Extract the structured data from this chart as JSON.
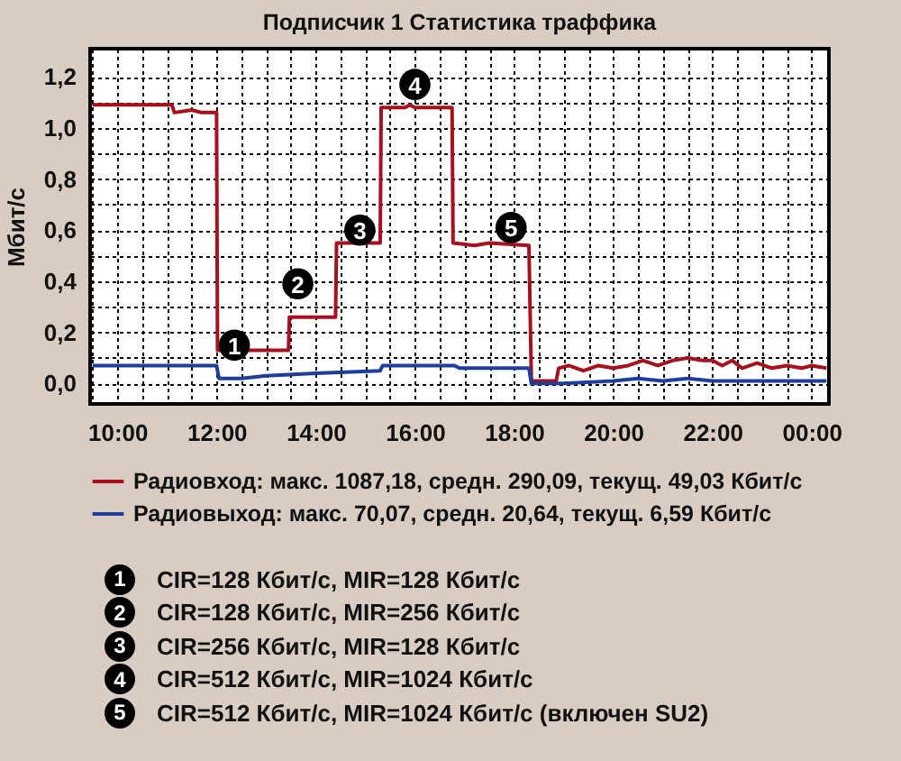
{
  "chart_data": {
    "type": "line",
    "title": "Подписчик 1 Статистика траффика",
    "ylabel": "Мбит/с",
    "xlim": [
      9.45,
      24.35
    ],
    "ylim": [
      -0.08,
      1.31
    ],
    "xticks": [
      {
        "value": 9.5,
        "label": null
      },
      {
        "value": 10,
        "label": "10:00"
      },
      {
        "value": 10.5,
        "label": null
      },
      {
        "value": 11,
        "label": null
      },
      {
        "value": 11.5,
        "label": null
      },
      {
        "value": 12,
        "label": "12:00"
      },
      {
        "value": 12.5,
        "label": null
      },
      {
        "value": 13,
        "label": null
      },
      {
        "value": 13.5,
        "label": null
      },
      {
        "value": 14,
        "label": "14:00"
      },
      {
        "value": 14.5,
        "label": null
      },
      {
        "value": 15,
        "label": null
      },
      {
        "value": 15.5,
        "label": null
      },
      {
        "value": 16,
        "label": "16:00"
      },
      {
        "value": 16.5,
        "label": null
      },
      {
        "value": 17,
        "label": null
      },
      {
        "value": 17.5,
        "label": null
      },
      {
        "value": 18,
        "label": "18:00"
      },
      {
        "value": 18.5,
        "label": null
      },
      {
        "value": 19,
        "label": null
      },
      {
        "value": 19.5,
        "label": null
      },
      {
        "value": 20,
        "label": "20:00"
      },
      {
        "value": 20.5,
        "label": null
      },
      {
        "value": 21,
        "label": null
      },
      {
        "value": 21.5,
        "label": null
      },
      {
        "value": 22,
        "label": "22:00"
      },
      {
        "value": 22.5,
        "label": null
      },
      {
        "value": 23,
        "label": null
      },
      {
        "value": 23.5,
        "label": null
      },
      {
        "value": 24,
        "label": "00:00"
      }
    ],
    "yticks": [
      {
        "value": 0,
        "label": "0,0"
      },
      {
        "value": 0.1,
        "label": null
      },
      {
        "value": 0.2,
        "label": "0,2"
      },
      {
        "value": 0.3,
        "label": null
      },
      {
        "value": 0.4,
        "label": "0,4"
      },
      {
        "value": 0.5,
        "label": null
      },
      {
        "value": 0.6,
        "label": "0,6"
      },
      {
        "value": 0.7,
        "label": null
      },
      {
        "value": 0.8,
        "label": "0,8"
      },
      {
        "value": 0.9,
        "label": null
      },
      {
        "value": 1.0,
        "label": "1,0"
      },
      {
        "value": 1.1,
        "label": null
      },
      {
        "value": 1.2,
        "label": "1,2"
      }
    ],
    "grid": true,
    "legend": "bottom",
    "line_style": "solid",
    "series": [
      {
        "name": "Радиовход: макс. 1087,18, средн. 290,09, текущ. 49,03 Кбит/с",
        "color": "#a8101e",
        "x": [
          9.5,
          11.1,
          11.15,
          11.5,
          11.7,
          12.0,
          12.02,
          13.45,
          13.47,
          14.4,
          14.42,
          15.3,
          15.32,
          15.8,
          15.9,
          16.0,
          16.75,
          16.77,
          17.2,
          17.5,
          18.3,
          18.35,
          18.85,
          18.9,
          19.1,
          19.4,
          19.7,
          20.0,
          20.3,
          20.6,
          20.9,
          21.2,
          21.5,
          21.8,
          22.0,
          22.2,
          22.4,
          22.6,
          22.9,
          23.2,
          23.5,
          23.8,
          24.0,
          24.3
        ],
        "values": [
          1.09,
          1.09,
          1.06,
          1.07,
          1.06,
          1.06,
          0.13,
          0.13,
          0.26,
          0.26,
          0.55,
          0.55,
          1.08,
          1.08,
          1.09,
          1.08,
          1.08,
          0.55,
          0.54,
          0.55,
          0.54,
          0.01,
          0.01,
          0.06,
          0.07,
          0.05,
          0.07,
          0.06,
          0.07,
          0.09,
          0.07,
          0.09,
          0.1,
          0.09,
          0.09,
          0.07,
          0.09,
          0.06,
          0.08,
          0.06,
          0.07,
          0.06,
          0.07,
          0.06
        ]
      },
      {
        "name": "Радиовыход: макс. 70,07, средн. 20,64, текущ. 6,59 Кбит/с",
        "color": "#1f3d9c",
        "x": [
          9.5,
          12.0,
          12.05,
          12.5,
          13.0,
          14.0,
          15.3,
          15.35,
          16.0,
          16.8,
          16.9,
          18.3,
          18.35,
          19.0,
          20.0,
          20.5,
          21.0,
          21.5,
          22.0,
          22.5,
          23.0,
          24.3
        ],
        "values": [
          0.07,
          0.07,
          0.02,
          0.02,
          0.03,
          0.04,
          0.05,
          0.07,
          0.07,
          0.07,
          0.06,
          0.06,
          0.0,
          0.0,
          0.01,
          0.02,
          0.01,
          0.02,
          0.01,
          0.01,
          0.01,
          0.01
        ]
      }
    ],
    "annotations": [
      {
        "text": "1",
        "x": 12.36,
        "y": 0.15
      },
      {
        "text": "2",
        "x": 13.64,
        "y": 0.39
      },
      {
        "text": "3",
        "x": 14.89,
        "y": 0.6
      },
      {
        "text": "4",
        "x": 16.0,
        "y": 1.17
      },
      {
        "text": "5",
        "x": 17.94,
        "y": 0.61
      },
      "CIR=128 Кбит/с, MIR=128 Кбит/с",
      "CIR=128 Кбит/с, MIR=256 Кбит/с",
      "CIR=256 Кбит/с, MIR=128 Кбит/с",
      "CIR=512 Кбит/с, MIR=1024 Кбит/с",
      "CIR=512 Кбит/с, MIR=1024 Кбит/с (включен SU2)"
    ]
  }
}
